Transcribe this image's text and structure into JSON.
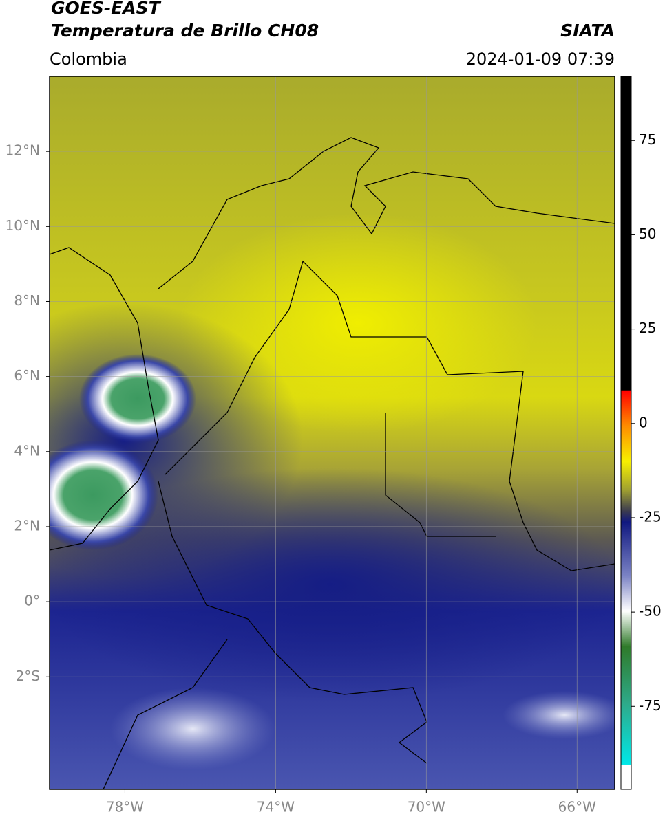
{
  "header": {
    "title": "GOES-EAST",
    "subtitle": "Temperatura de Brillo CH08",
    "source": "SIATA",
    "region": "Colombia",
    "datetime": "2024-01-09 07:39"
  },
  "map": {
    "xlim": [
      -80,
      -65
    ],
    "ylim": [
      -5,
      14
    ],
    "xticks": [
      {
        "value": -78,
        "label": "78°W"
      },
      {
        "value": -74,
        "label": "74°W"
      },
      {
        "value": -70,
        "label": "70°W"
      },
      {
        "value": -66,
        "label": "66°W"
      }
    ],
    "yticks": [
      {
        "value": 12,
        "label": "12°N"
      },
      {
        "value": 10,
        "label": "10°N"
      },
      {
        "value": 8,
        "label": "8°N"
      },
      {
        "value": 6,
        "label": "6°N"
      },
      {
        "value": 4,
        "label": "4°N"
      },
      {
        "value": 2,
        "label": "2°N"
      },
      {
        "value": 0,
        "label": "0°"
      },
      {
        "value": -2,
        "label": "2°S"
      }
    ],
    "grid": true
  },
  "colorbar": {
    "lim": [
      -97,
      92
    ],
    "ticks": [
      75,
      50,
      25,
      0,
      -25,
      -50,
      -75
    ]
  }
}
